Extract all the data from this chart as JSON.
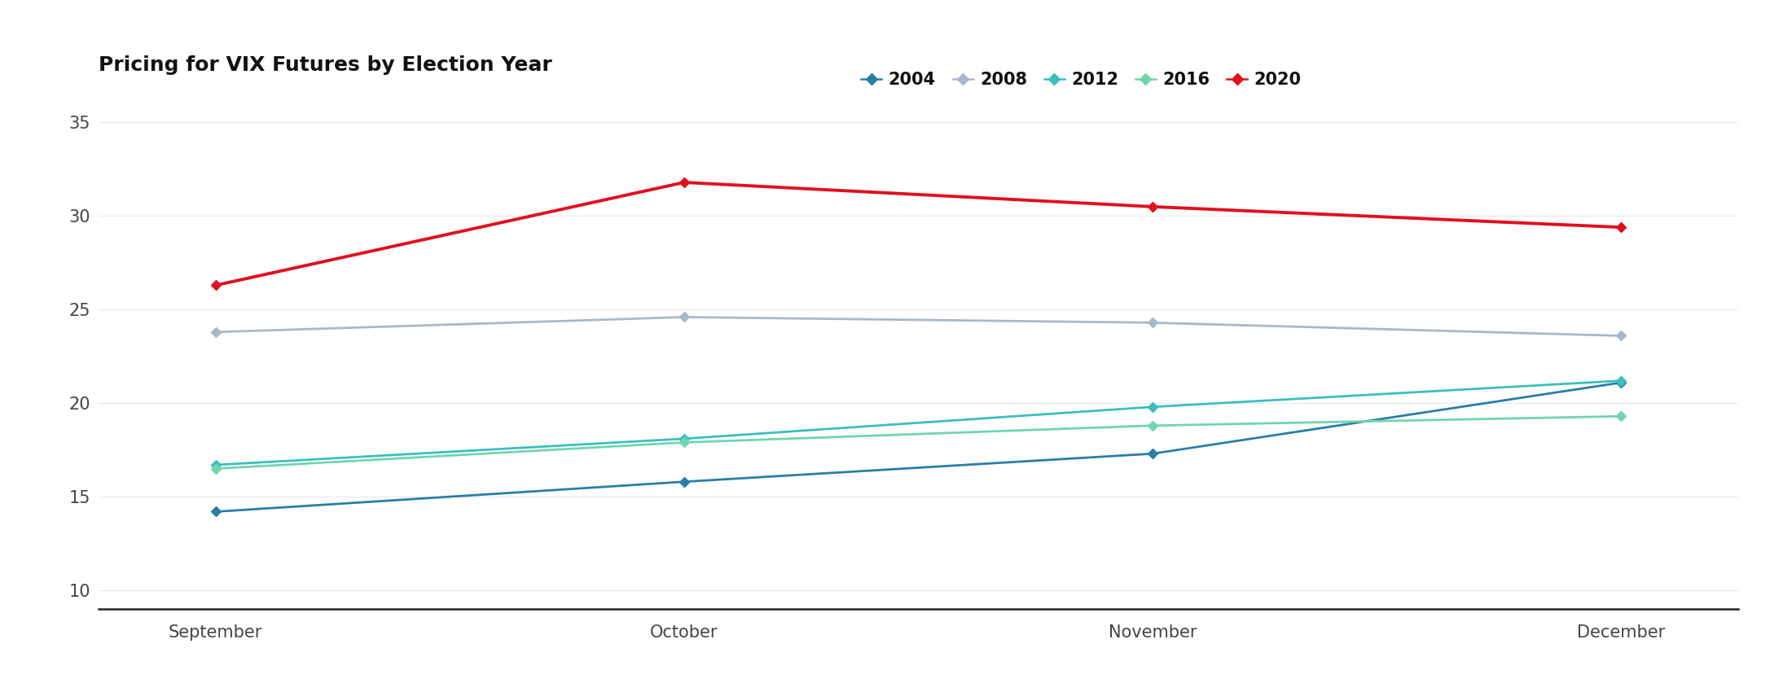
{
  "title": "Pricing for VIX Futures by Election Year",
  "months": [
    "September",
    "October",
    "November",
    "December"
  ],
  "series": {
    "2004": {
      "values": [
        14.2,
        15.8,
        17.3,
        21.1
      ],
      "color": "#2A7EA6",
      "linewidth": 2.0
    },
    "2008": {
      "values": [
        23.8,
        24.6,
        24.3,
        23.6
      ],
      "color": "#A8B8C8",
      "linewidth": 2.0
    },
    "2012": {
      "values": [
        16.7,
        18.1,
        19.8,
        21.2
      ],
      "color": "#3BBFBF",
      "linewidth": 2.0
    },
    "2016": {
      "values": [
        16.5,
        17.9,
        18.8,
        19.3
      ],
      "color": "#6FD6AD",
      "linewidth": 2.0
    },
    "2020": {
      "values": [
        26.3,
        31.8,
        30.5,
        29.4
      ],
      "color": "#E01020",
      "linewidth": 2.8
    }
  },
  "legend_colors": {
    "2004": "#2A7EA6",
    "2008": "#A8B8C8",
    "2012": "#3BBFBF",
    "2016": "#6FD6AD",
    "2020": "#E01020"
  },
  "ylim": [
    9,
    36
  ],
  "yticks": [
    10,
    15,
    20,
    25,
    30,
    35
  ],
  "background_color": "#FFFFFF",
  "title_fontsize": 18,
  "tick_fontsize": 15,
  "legend_fontsize": 15
}
